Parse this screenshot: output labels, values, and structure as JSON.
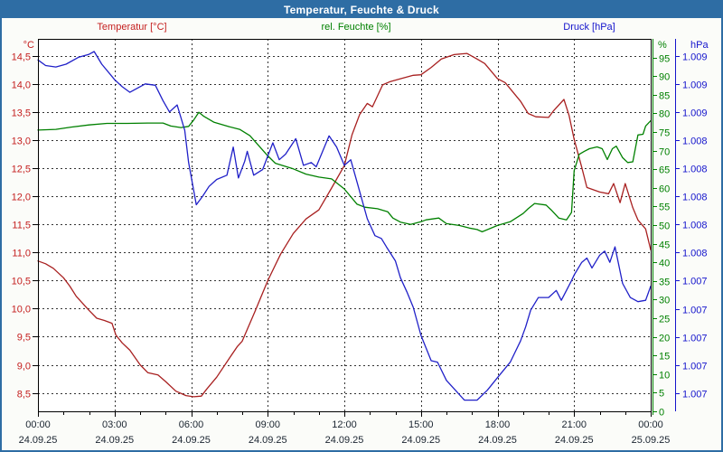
{
  "window": {
    "title": "Temperatur, Feuchte & Druck",
    "titlebar_color": "#2e6da4",
    "border_color": "#2e6da4",
    "background": "#fbfcf9",
    "plot_background": "#ffffff"
  },
  "header_labels": {
    "temperature": "Temperatur [°C]",
    "humidity": "rel. Feuchte [%]",
    "pressure": "Druck [hPa]"
  },
  "chart_data": {
    "type": "line",
    "title": "Temperatur, Feuchte & Druck",
    "grid": "dashed",
    "legend_position": "top",
    "legend": [
      "Temperatur [°C]",
      "rel. Feuchte [%]",
      "Druck [hPa]"
    ],
    "x_axis": {
      "range_hours": [
        0,
        24
      ],
      "major_tick_every_hours": 3,
      "minor_tick_every_hours": 1,
      "tick_times": [
        "00:00",
        "03:00",
        "06:00",
        "09:00",
        "12:00",
        "15:00",
        "18:00",
        "21:00",
        "00:00"
      ],
      "tick_dates": [
        "24.09.25",
        "24.09.25",
        "24.09.25",
        "24.09.25",
        "24.09.25",
        "24.09.25",
        "24.09.25",
        "24.09.25",
        "25.09.25"
      ],
      "label_color": "#1a2430"
    },
    "temp_axis": {
      "unit": "°C",
      "color": "#c41e1e",
      "min": 8.17,
      "max": 14.81,
      "tick_values": [
        14.5,
        14.0,
        13.5,
        13.0,
        12.5,
        12.0,
        11.5,
        11.0,
        10.5,
        10.0,
        9.5,
        9.0,
        8.5
      ],
      "tick_labels": [
        "14,5",
        "14,0",
        "13,5",
        "13,0",
        "12,5",
        "12,0",
        "11,5",
        "11,0",
        "10,5",
        "10,0",
        "9,5",
        "9,0",
        "8,5"
      ]
    },
    "humidity_axis": {
      "unit": "%",
      "color": "#008000",
      "min": 0,
      "max": 100,
      "tick_values": [
        95,
        90,
        85,
        80,
        75,
        70,
        65,
        60,
        55,
        50,
        45,
        40,
        35,
        30,
        25,
        20,
        15,
        10,
        5,
        0
      ],
      "tick_labels": [
        "95",
        "90",
        "85",
        "80",
        "75",
        "70",
        "65",
        "60",
        "55",
        "50",
        "45",
        "40",
        "35",
        "30",
        "25",
        "20",
        "15",
        "10",
        "5",
        "0"
      ]
    },
    "pressure_axis": {
      "unit": "hPa",
      "color": "#1414cc",
      "min": 1006.47,
      "max": 1009.12,
      "tick_values": [
        1009.0,
        1008.8,
        1008.6,
        1008.4,
        1008.2,
        1008.0,
        1007.8,
        1007.6,
        1007.4,
        1007.2,
        1007.0,
        1006.8,
        1006.6
      ],
      "tick_labels": [
        "1.009",
        "1.009",
        "1.009",
        "1.008",
        "1.008",
        "1.008",
        "1.008",
        "1.008",
        "1.007",
        "1.007",
        "1.007",
        "1.007",
        "1.007"
      ]
    },
    "series": [
      {
        "name": "Temperatur [°C]",
        "axis": "temp",
        "color": "#a82020",
        "points": [
          [
            0,
            10.85
          ],
          [
            0.3,
            10.8
          ],
          [
            0.6,
            10.72
          ],
          [
            1,
            10.55
          ],
          [
            1.25,
            10.4
          ],
          [
            1.5,
            10.22
          ],
          [
            2,
            9.97
          ],
          [
            2.3,
            9.83
          ],
          [
            2.6,
            9.79
          ],
          [
            2.9,
            9.74
          ],
          [
            3.05,
            9.53
          ],
          [
            3.3,
            9.39
          ],
          [
            3.6,
            9.26
          ],
          [
            4,
            9.0
          ],
          [
            4.3,
            8.86
          ],
          [
            4.7,
            8.82
          ],
          [
            5,
            8.7
          ],
          [
            5.4,
            8.53
          ],
          [
            5.8,
            8.45
          ],
          [
            6.1,
            8.43
          ],
          [
            6.4,
            8.44
          ],
          [
            6.6,
            8.56
          ],
          [
            7,
            8.78
          ],
          [
            7.5,
            9.12
          ],
          [
            7.8,
            9.32
          ],
          [
            8,
            9.42
          ],
          [
            8.5,
            9.95
          ],
          [
            9,
            10.5
          ],
          [
            9.5,
            10.97
          ],
          [
            10,
            11.34
          ],
          [
            10.5,
            11.6
          ],
          [
            11,
            11.76
          ],
          [
            11.5,
            12.15
          ],
          [
            12,
            12.55
          ],
          [
            12.3,
            13.1
          ],
          [
            12.6,
            13.46
          ],
          [
            12.9,
            13.66
          ],
          [
            13.1,
            13.6
          ],
          [
            13.5,
            13.99
          ],
          [
            13.8,
            14.05
          ],
          [
            14.2,
            14.1
          ],
          [
            14.7,
            14.16
          ],
          [
            15,
            14.17
          ],
          [
            15.4,
            14.3
          ],
          [
            15.8,
            14.45
          ],
          [
            16.3,
            14.53
          ],
          [
            16.8,
            14.55
          ],
          [
            17.2,
            14.45
          ],
          [
            17.5,
            14.37
          ],
          [
            18,
            14.1
          ],
          [
            18.3,
            14.03
          ],
          [
            18.9,
            13.7
          ],
          [
            19.2,
            13.48
          ],
          [
            19.5,
            13.42
          ],
          [
            20,
            13.41
          ],
          [
            20.2,
            13.53
          ],
          [
            20.6,
            13.73
          ],
          [
            20.8,
            13.45
          ],
          [
            21,
            13.02
          ],
          [
            21.3,
            12.52
          ],
          [
            21.5,
            12.16
          ],
          [
            22,
            12.08
          ],
          [
            22.35,
            12.05
          ],
          [
            22.55,
            12.23
          ],
          [
            22.8,
            11.89
          ],
          [
            23,
            12.23
          ],
          [
            23.3,
            11.8
          ],
          [
            23.5,
            11.58
          ],
          [
            23.8,
            11.42
          ],
          [
            24,
            11.05
          ]
        ]
      },
      {
        "name": "rel. Feuchte [%]",
        "axis": "humidity",
        "color": "#008000",
        "points": [
          [
            0,
            75.5
          ],
          [
            0.7,
            75.7
          ],
          [
            1.3,
            76.3
          ],
          [
            2,
            76.9
          ],
          [
            2.7,
            77.3
          ],
          [
            3.5,
            77.3
          ],
          [
            4.3,
            77.4
          ],
          [
            4.9,
            77.4
          ],
          [
            5.2,
            76.6
          ],
          [
            5.6,
            76.2
          ],
          [
            5.9,
            76.5
          ],
          [
            6.1,
            78.2
          ],
          [
            6.3,
            80.3
          ],
          [
            6.5,
            79.2
          ],
          [
            6.9,
            77.6
          ],
          [
            7.5,
            76.4
          ],
          [
            7.9,
            75.7
          ],
          [
            8.3,
            74.0
          ],
          [
            9,
            68.6
          ],
          [
            9.3,
            66.6
          ],
          [
            10,
            65.1
          ],
          [
            10.5,
            63.7
          ],
          [
            11,
            62.9
          ],
          [
            11.5,
            62.4
          ],
          [
            12,
            59.7
          ],
          [
            12.5,
            55.6
          ],
          [
            12.8,
            54.8
          ],
          [
            13.3,
            54.4
          ],
          [
            13.7,
            53.6
          ],
          [
            13.9,
            51.9
          ],
          [
            14.2,
            50.8
          ],
          [
            14.6,
            50.2
          ],
          [
            15,
            50.9
          ],
          [
            15.2,
            51.4
          ],
          [
            15.7,
            51.9
          ],
          [
            16,
            50.4
          ],
          [
            16.5,
            49.9
          ],
          [
            16.9,
            49.2
          ],
          [
            17.2,
            48.8
          ],
          [
            17.4,
            48.2
          ],
          [
            18,
            49.9
          ],
          [
            18.5,
            50.9
          ],
          [
            19,
            53.1
          ],
          [
            19.2,
            54.4
          ],
          [
            19.45,
            55.8
          ],
          [
            19.9,
            55.4
          ],
          [
            20.1,
            54.1
          ],
          [
            20.4,
            51.9
          ],
          [
            20.7,
            51.4
          ],
          [
            20.9,
            53.4
          ],
          [
            21,
            64.6
          ],
          [
            21.2,
            69.0
          ],
          [
            21.4,
            69.8
          ],
          [
            21.6,
            70.5
          ],
          [
            21.9,
            71.0
          ],
          [
            22.1,
            70.5
          ],
          [
            22.3,
            67.6
          ],
          [
            22.5,
            70.5
          ],
          [
            22.65,
            71.2
          ],
          [
            22.9,
            68.1
          ],
          [
            23.1,
            66.8
          ],
          [
            23.3,
            67.0
          ],
          [
            23.5,
            74.2
          ],
          [
            23.7,
            74.4
          ],
          [
            23.8,
            76.6
          ],
          [
            24,
            78.0
          ]
        ]
      },
      {
        "name": "Druck [hPa]",
        "axis": "pressure",
        "color": "#2020c8",
        "points": [
          [
            0,
            1008.97
          ],
          [
            0.3,
            1008.93
          ],
          [
            0.7,
            1008.92
          ],
          [
            1.1,
            1008.94
          ],
          [
            1.6,
            1008.99
          ],
          [
            2,
            1009.01
          ],
          [
            2.2,
            1009.03
          ],
          [
            2.5,
            1008.94
          ],
          [
            3,
            1008.83
          ],
          [
            3.3,
            1008.78
          ],
          [
            3.6,
            1008.74
          ],
          [
            3.9,
            1008.77
          ],
          [
            4.2,
            1008.8
          ],
          [
            4.6,
            1008.79
          ],
          [
            4.9,
            1008.68
          ],
          [
            5.15,
            1008.6
          ],
          [
            5.45,
            1008.65
          ],
          [
            5.75,
            1008.47
          ],
          [
            5.9,
            1008.24
          ],
          [
            6.2,
            1007.94
          ],
          [
            6.45,
            1008.0
          ],
          [
            6.7,
            1008.07
          ],
          [
            7,
            1008.12
          ],
          [
            7.4,
            1008.15
          ],
          [
            7.65,
            1008.35
          ],
          [
            7.85,
            1008.13
          ],
          [
            8.1,
            1008.25
          ],
          [
            8.2,
            1008.32
          ],
          [
            8.45,
            1008.15
          ],
          [
            8.8,
            1008.19
          ],
          [
            9.2,
            1008.38
          ],
          [
            9.45,
            1008.26
          ],
          [
            9.7,
            1008.3
          ],
          [
            10.1,
            1008.41
          ],
          [
            10.4,
            1008.22
          ],
          [
            10.7,
            1008.24
          ],
          [
            10.9,
            1008.21
          ],
          [
            11.4,
            1008.43
          ],
          [
            11.7,
            1008.35
          ],
          [
            12,
            1008.22
          ],
          [
            12.25,
            1008.26
          ],
          [
            12.5,
            1008.1
          ],
          [
            12.9,
            1007.84
          ],
          [
            13.2,
            1007.72
          ],
          [
            13.45,
            1007.7
          ],
          [
            13.65,
            1007.64
          ],
          [
            14,
            1007.54
          ],
          [
            14.2,
            1007.42
          ],
          [
            14.45,
            1007.32
          ],
          [
            14.7,
            1007.21
          ],
          [
            15,
            1007.01
          ],
          [
            15.4,
            1006.83
          ],
          [
            15.65,
            1006.82
          ],
          [
            16,
            1006.69
          ],
          [
            16.4,
            1006.61
          ],
          [
            16.7,
            1006.55
          ],
          [
            17.2,
            1006.55
          ],
          [
            17.6,
            1006.62
          ],
          [
            18,
            1006.71
          ],
          [
            18.5,
            1006.82
          ],
          [
            18.9,
            1006.97
          ],
          [
            19.1,
            1007.07
          ],
          [
            19.3,
            1007.19
          ],
          [
            19.6,
            1007.28
          ],
          [
            20,
            1007.28
          ],
          [
            20.3,
            1007.33
          ],
          [
            20.5,
            1007.26
          ],
          [
            20.9,
            1007.4
          ],
          [
            21,
            1007.44
          ],
          [
            21.3,
            1007.53
          ],
          [
            21.5,
            1007.56
          ],
          [
            21.7,
            1007.49
          ],
          [
            22,
            1007.58
          ],
          [
            22.2,
            1007.61
          ],
          [
            22.4,
            1007.53
          ],
          [
            22.6,
            1007.64
          ],
          [
            22.9,
            1007.38
          ],
          [
            23.2,
            1007.28
          ],
          [
            23.5,
            1007.25
          ],
          [
            23.8,
            1007.26
          ],
          [
            24,
            1007.36
          ]
        ]
      }
    ]
  }
}
